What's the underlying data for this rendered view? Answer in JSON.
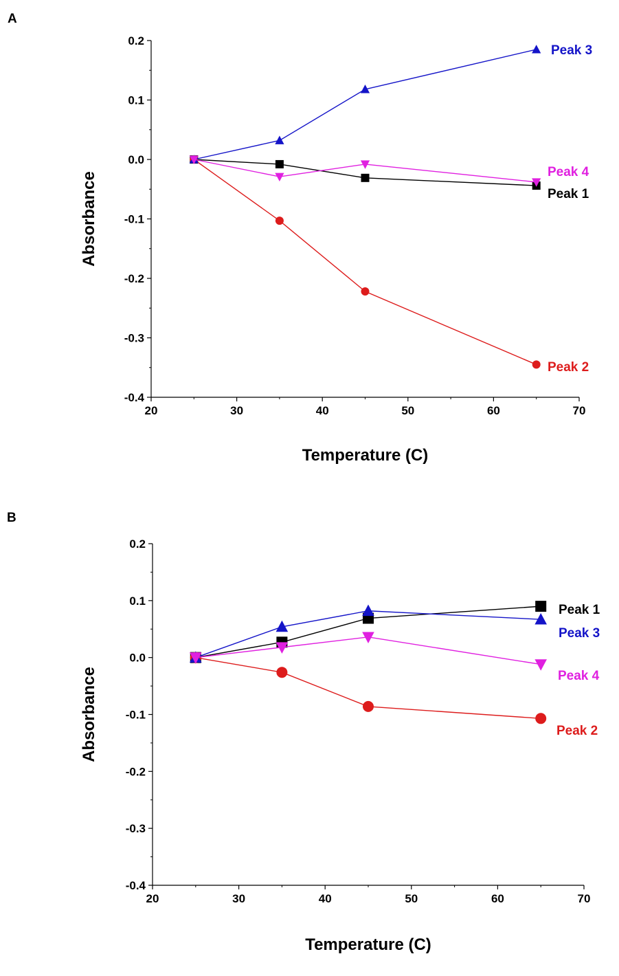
{
  "chart_data": [
    {
      "type": "line",
      "panel_label": "A",
      "xlabel": "Temperature (C)",
      "ylabel": "Absorbance",
      "xlim": [
        20,
        70
      ],
      "ylim": [
        -0.4,
        0.2
      ],
      "x_ticks": [
        "20",
        "30",
        "40",
        "50",
        "60",
        "70"
      ],
      "y_ticks": [
        "-0.4",
        "-0.3",
        "-0.2",
        "-0.1",
        "0.0",
        "0.1",
        "0.2"
      ],
      "grid": false,
      "legend": "direct labels at line ends",
      "x": [
        25,
        35,
        45,
        65
      ],
      "series": [
        {
          "name": "Peak 1",
          "color": "#000000",
          "marker": "square",
          "values": [
            0.0,
            -0.008,
            -0.031,
            -0.044
          ]
        },
        {
          "name": "Peak 2",
          "color": "#dd1c1c",
          "marker": "circle",
          "values": [
            0.0,
            -0.103,
            -0.222,
            -0.345
          ]
        },
        {
          "name": "Peak 3",
          "color": "#1414c8",
          "marker": "triangle-up",
          "values": [
            0.0,
            0.032,
            0.118,
            0.185
          ]
        },
        {
          "name": "Peak 4",
          "color": "#e020e0",
          "marker": "triangle-down",
          "values": [
            0.0,
            -0.029,
            -0.008,
            -0.038
          ]
        }
      ]
    },
    {
      "type": "line",
      "panel_label": "B",
      "xlabel": "Temperature (C)",
      "ylabel": "Absorbance",
      "xlim": [
        20,
        70
      ],
      "ylim": [
        -0.4,
        0.2
      ],
      "x_ticks": [
        "20",
        "30",
        "40",
        "50",
        "60",
        "70"
      ],
      "y_ticks": [
        "-0.4",
        "-0.3",
        "-0.2",
        "-0.1",
        "0.0",
        "0.1",
        "0.2"
      ],
      "grid": false,
      "legend": "direct labels at line ends",
      "x": [
        25,
        35,
        45,
        65
      ],
      "series": [
        {
          "name": "Peak 1",
          "color": "#000000",
          "marker": "square",
          "values": [
            0.0,
            0.027,
            0.069,
            0.09
          ]
        },
        {
          "name": "Peak 2",
          "color": "#dd1c1c",
          "marker": "circle",
          "values": [
            0.0,
            -0.026,
            -0.086,
            -0.107
          ]
        },
        {
          "name": "Peak 3",
          "color": "#1414c8",
          "marker": "triangle-up",
          "values": [
            0.0,
            0.054,
            0.082,
            0.067
          ]
        },
        {
          "name": "Peak 4",
          "color": "#e020e0",
          "marker": "triangle-down",
          "values": [
            0.0,
            0.018,
            0.036,
            -0.012
          ]
        }
      ]
    }
  ]
}
